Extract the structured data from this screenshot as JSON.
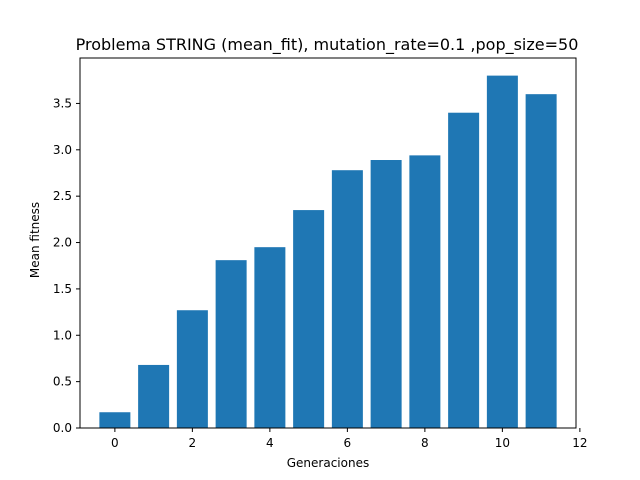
{
  "chart_data": {
    "type": "bar",
    "title": "Problema STRING (mean_fit), mutation_rate=0.1 ,pop_size=50",
    "xlabel": "Generaciones",
    "ylabel": "Mean fitness",
    "x": [
      0,
      1,
      2,
      3,
      4,
      5,
      6,
      7,
      8,
      9,
      10,
      11
    ],
    "values": [
      0.17,
      0.68,
      1.27,
      1.81,
      1.95,
      2.35,
      2.78,
      2.89,
      2.94,
      3.4,
      3.8,
      3.6
    ],
    "xlim": [
      -0.9,
      11.9
    ],
    "ylim": [
      0,
      3.99
    ],
    "xticks": [
      0,
      2,
      4,
      6,
      8,
      10,
      12
    ],
    "yticks": [
      0.0,
      0.5,
      1.0,
      1.5,
      2.0,
      2.5,
      3.0,
      3.5
    ],
    "ytick_labels": [
      "0.0",
      "0.5",
      "1.0",
      "1.5",
      "2.0",
      "2.5",
      "3.0",
      "3.5"
    ],
    "bar_color": "#1f77b4",
    "grid": false,
    "legend": false
  }
}
